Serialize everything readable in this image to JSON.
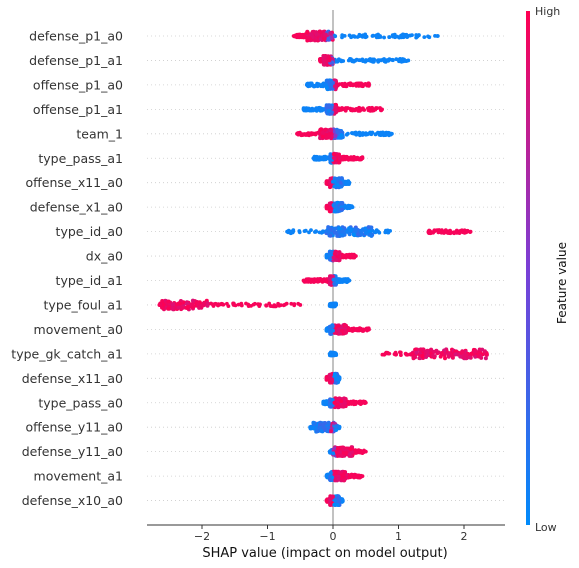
{
  "chart_data": {
    "type": "scatter",
    "subtype": "shap-beeswarm",
    "xlabel": "SHAP value (impact on model output)",
    "xlim": [
      -2.85,
      2.55
    ],
    "xticks": [
      {
        "v": -2,
        "label": "−2"
      },
      {
        "v": -1,
        "label": "−1"
      },
      {
        "v": 0,
        "label": "0"
      },
      {
        "v": 1,
        "label": "1"
      },
      {
        "v": 2,
        "label": "2"
      }
    ],
    "colorbar": {
      "title": "Feature value",
      "high_label": "High",
      "low_label": "Low",
      "high_color": "#ff0052",
      "low_color": "#008bfb"
    },
    "features": [
      {
        "name": "defense_p1_a0",
        "min": -0.6,
        "max": 1.6,
        "high_range": [
          -0.6,
          -0.1
        ],
        "low_range": [
          0.0,
          1.6
        ],
        "dense": [
          -0.4,
          0.0
        ]
      },
      {
        "name": "defense_p1_a1",
        "min": -0.2,
        "max": 1.15,
        "high_range": [
          -0.2,
          -0.05
        ],
        "low_range": [
          0.0,
          1.15
        ],
        "dense": [
          -0.15,
          0.0
        ]
      },
      {
        "name": "offense_p1_a0",
        "min": -0.4,
        "max": 0.55,
        "high_range": [
          0.0,
          0.55
        ],
        "low_range": [
          -0.4,
          0.0
        ],
        "dense": [
          -0.1,
          0.05
        ]
      },
      {
        "name": "offense_p1_a1",
        "min": -0.45,
        "max": 0.75,
        "high_range": [
          0.0,
          0.75
        ],
        "low_range": [
          -0.45,
          0.0
        ],
        "dense": [
          -0.1,
          0.05
        ]
      },
      {
        "name": "team_1",
        "min": -0.55,
        "max": 0.9,
        "high_range": [
          -0.55,
          0.05
        ],
        "low_range": [
          0.0,
          0.9
        ],
        "dense": [
          -0.2,
          0.15
        ]
      },
      {
        "name": "type_pass_a1",
        "min": -0.3,
        "max": 0.45,
        "high_range": [
          0.0,
          0.45
        ],
        "low_range": [
          -0.3,
          0.0
        ],
        "dense": [
          -0.05,
          0.1
        ]
      },
      {
        "name": "offense_x11_a0",
        "min": -0.1,
        "max": 0.25,
        "high_range": [
          -0.1,
          0.0
        ],
        "low_range": [
          0.0,
          0.25
        ],
        "dense": [
          -0.05,
          0.15
        ]
      },
      {
        "name": "defense_x1_a0",
        "min": -0.1,
        "max": 0.3,
        "high_range": [
          -0.1,
          0.0
        ],
        "low_range": [
          0.0,
          0.3
        ],
        "dense": [
          -0.05,
          0.15
        ]
      },
      {
        "name": "type_id_a0",
        "min": -0.7,
        "max": 2.1,
        "high_range": [
          1.45,
          2.1
        ],
        "low_range": [
          -0.7,
          0.9
        ],
        "dense": [
          -0.1,
          0.6
        ]
      },
      {
        "name": "dx_a0",
        "min": -0.1,
        "max": 0.35,
        "high_range": [
          0.0,
          0.35
        ],
        "low_range": [
          -0.1,
          0.0
        ],
        "dense": [
          -0.05,
          0.1
        ]
      },
      {
        "name": "type_id_a1",
        "min": -0.45,
        "max": 0.25,
        "high_range": [
          -0.45,
          0.0
        ],
        "low_range": [
          0.0,
          0.25
        ],
        "dense": [
          -0.05,
          0.05
        ]
      },
      {
        "name": "type_foul_a1",
        "min": -2.65,
        "max": -0.5,
        "high_range": [
          -2.65,
          -0.5
        ],
        "low_range": [
          -0.05,
          0.05
        ],
        "dense": [
          -2.65,
          -1.9
        ]
      },
      {
        "name": "movement_a0",
        "min": -0.1,
        "max": 0.55,
        "high_range": [
          0.0,
          0.55
        ],
        "low_range": [
          -0.1,
          0.0
        ],
        "dense": [
          -0.05,
          0.2
        ]
      },
      {
        "name": "type_gk_catch_a1",
        "min": -0.05,
        "max": 2.35,
        "high_range": [
          0.75,
          2.35
        ],
        "low_range": [
          -0.05,
          0.05
        ],
        "dense": [
          1.2,
          2.35
        ]
      },
      {
        "name": "defense_x11_a0",
        "min": -0.1,
        "max": 0.1,
        "high_range": [
          -0.1,
          0.0
        ],
        "low_range": [
          0.0,
          0.1
        ],
        "dense": [
          -0.05,
          0.08
        ]
      },
      {
        "name": "type_pass_a0",
        "min": -0.15,
        "max": 0.5,
        "high_range": [
          0.0,
          0.5
        ],
        "low_range": [
          -0.15,
          0.0
        ],
        "dense": [
          -0.05,
          0.2
        ]
      },
      {
        "name": "offense_y11_a0",
        "min": -0.35,
        "max": 0.1,
        "high_range": [
          -0.05,
          0.05
        ],
        "low_range": [
          -0.35,
          0.1
        ],
        "dense": [
          -0.3,
          0.05
        ]
      },
      {
        "name": "defense_y11_a0",
        "min": -0.05,
        "max": 0.5,
        "high_range": [
          0.0,
          0.5
        ],
        "low_range": [
          -0.05,
          0.05
        ],
        "dense": [
          0.0,
          0.3
        ]
      },
      {
        "name": "movement_a1",
        "min": -0.1,
        "max": 0.45,
        "high_range": [
          0.0,
          0.45
        ],
        "low_range": [
          -0.1,
          0.0
        ],
        "dense": [
          -0.05,
          0.2
        ]
      },
      {
        "name": "defense_x10_a0",
        "min": -0.1,
        "max": 0.15,
        "high_range": [
          -0.1,
          0.0
        ],
        "low_range": [
          0.0,
          0.15
        ],
        "dense": [
          -0.05,
          0.1
        ]
      }
    ]
  }
}
